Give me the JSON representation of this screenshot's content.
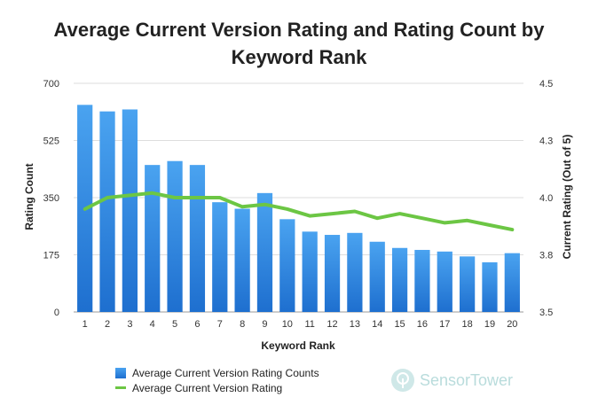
{
  "chart_data": {
    "type": "bar",
    "title_lines": [
      "Average Current Version Rating and Rating Count by",
      "Keyword Rank"
    ],
    "xlabel": "Keyword Rank",
    "ylabel": "Rating Count",
    "y2label": "Current Rating (Out of 5)",
    "categories": [
      "1",
      "2",
      "3",
      "4",
      "5",
      "6",
      "7",
      "8",
      "9",
      "10",
      "11",
      "12",
      "13",
      "14",
      "15",
      "16",
      "17",
      "18",
      "19",
      "20"
    ],
    "ylim": [
      0,
      700
    ],
    "yticks": [
      "0",
      "175",
      "350",
      "525",
      "700"
    ],
    "y2lim": [
      3.5,
      4.5
    ],
    "y2ticks": [
      "3.5",
      "3.8",
      "4.0",
      "4.3",
      "4.5"
    ],
    "series": [
      {
        "name": "Average Current Version Rating Counts",
        "type": "bar",
        "color": "#2f86e0",
        "values": [
          634,
          614,
          620,
          450,
          462,
          450,
          336,
          316,
          364,
          284,
          246,
          236,
          242,
          215,
          196,
          190,
          185,
          170,
          152,
          180
        ]
      },
      {
        "name": "Average Current Version Rating",
        "type": "line",
        "axis": "right",
        "color": "#6cc644",
        "values": [
          3.95,
          4.0,
          4.01,
          4.02,
          4.0,
          4.0,
          4.0,
          3.96,
          3.97,
          3.95,
          3.92,
          3.93,
          3.94,
          3.91,
          3.93,
          3.91,
          3.89,
          3.9,
          3.88,
          3.86
        ]
      }
    ]
  },
  "legend": {
    "bar_label": "Average Current Version Rating Counts",
    "line_label": "Average Current Version Rating"
  },
  "brand": {
    "name": "SensorTower"
  }
}
